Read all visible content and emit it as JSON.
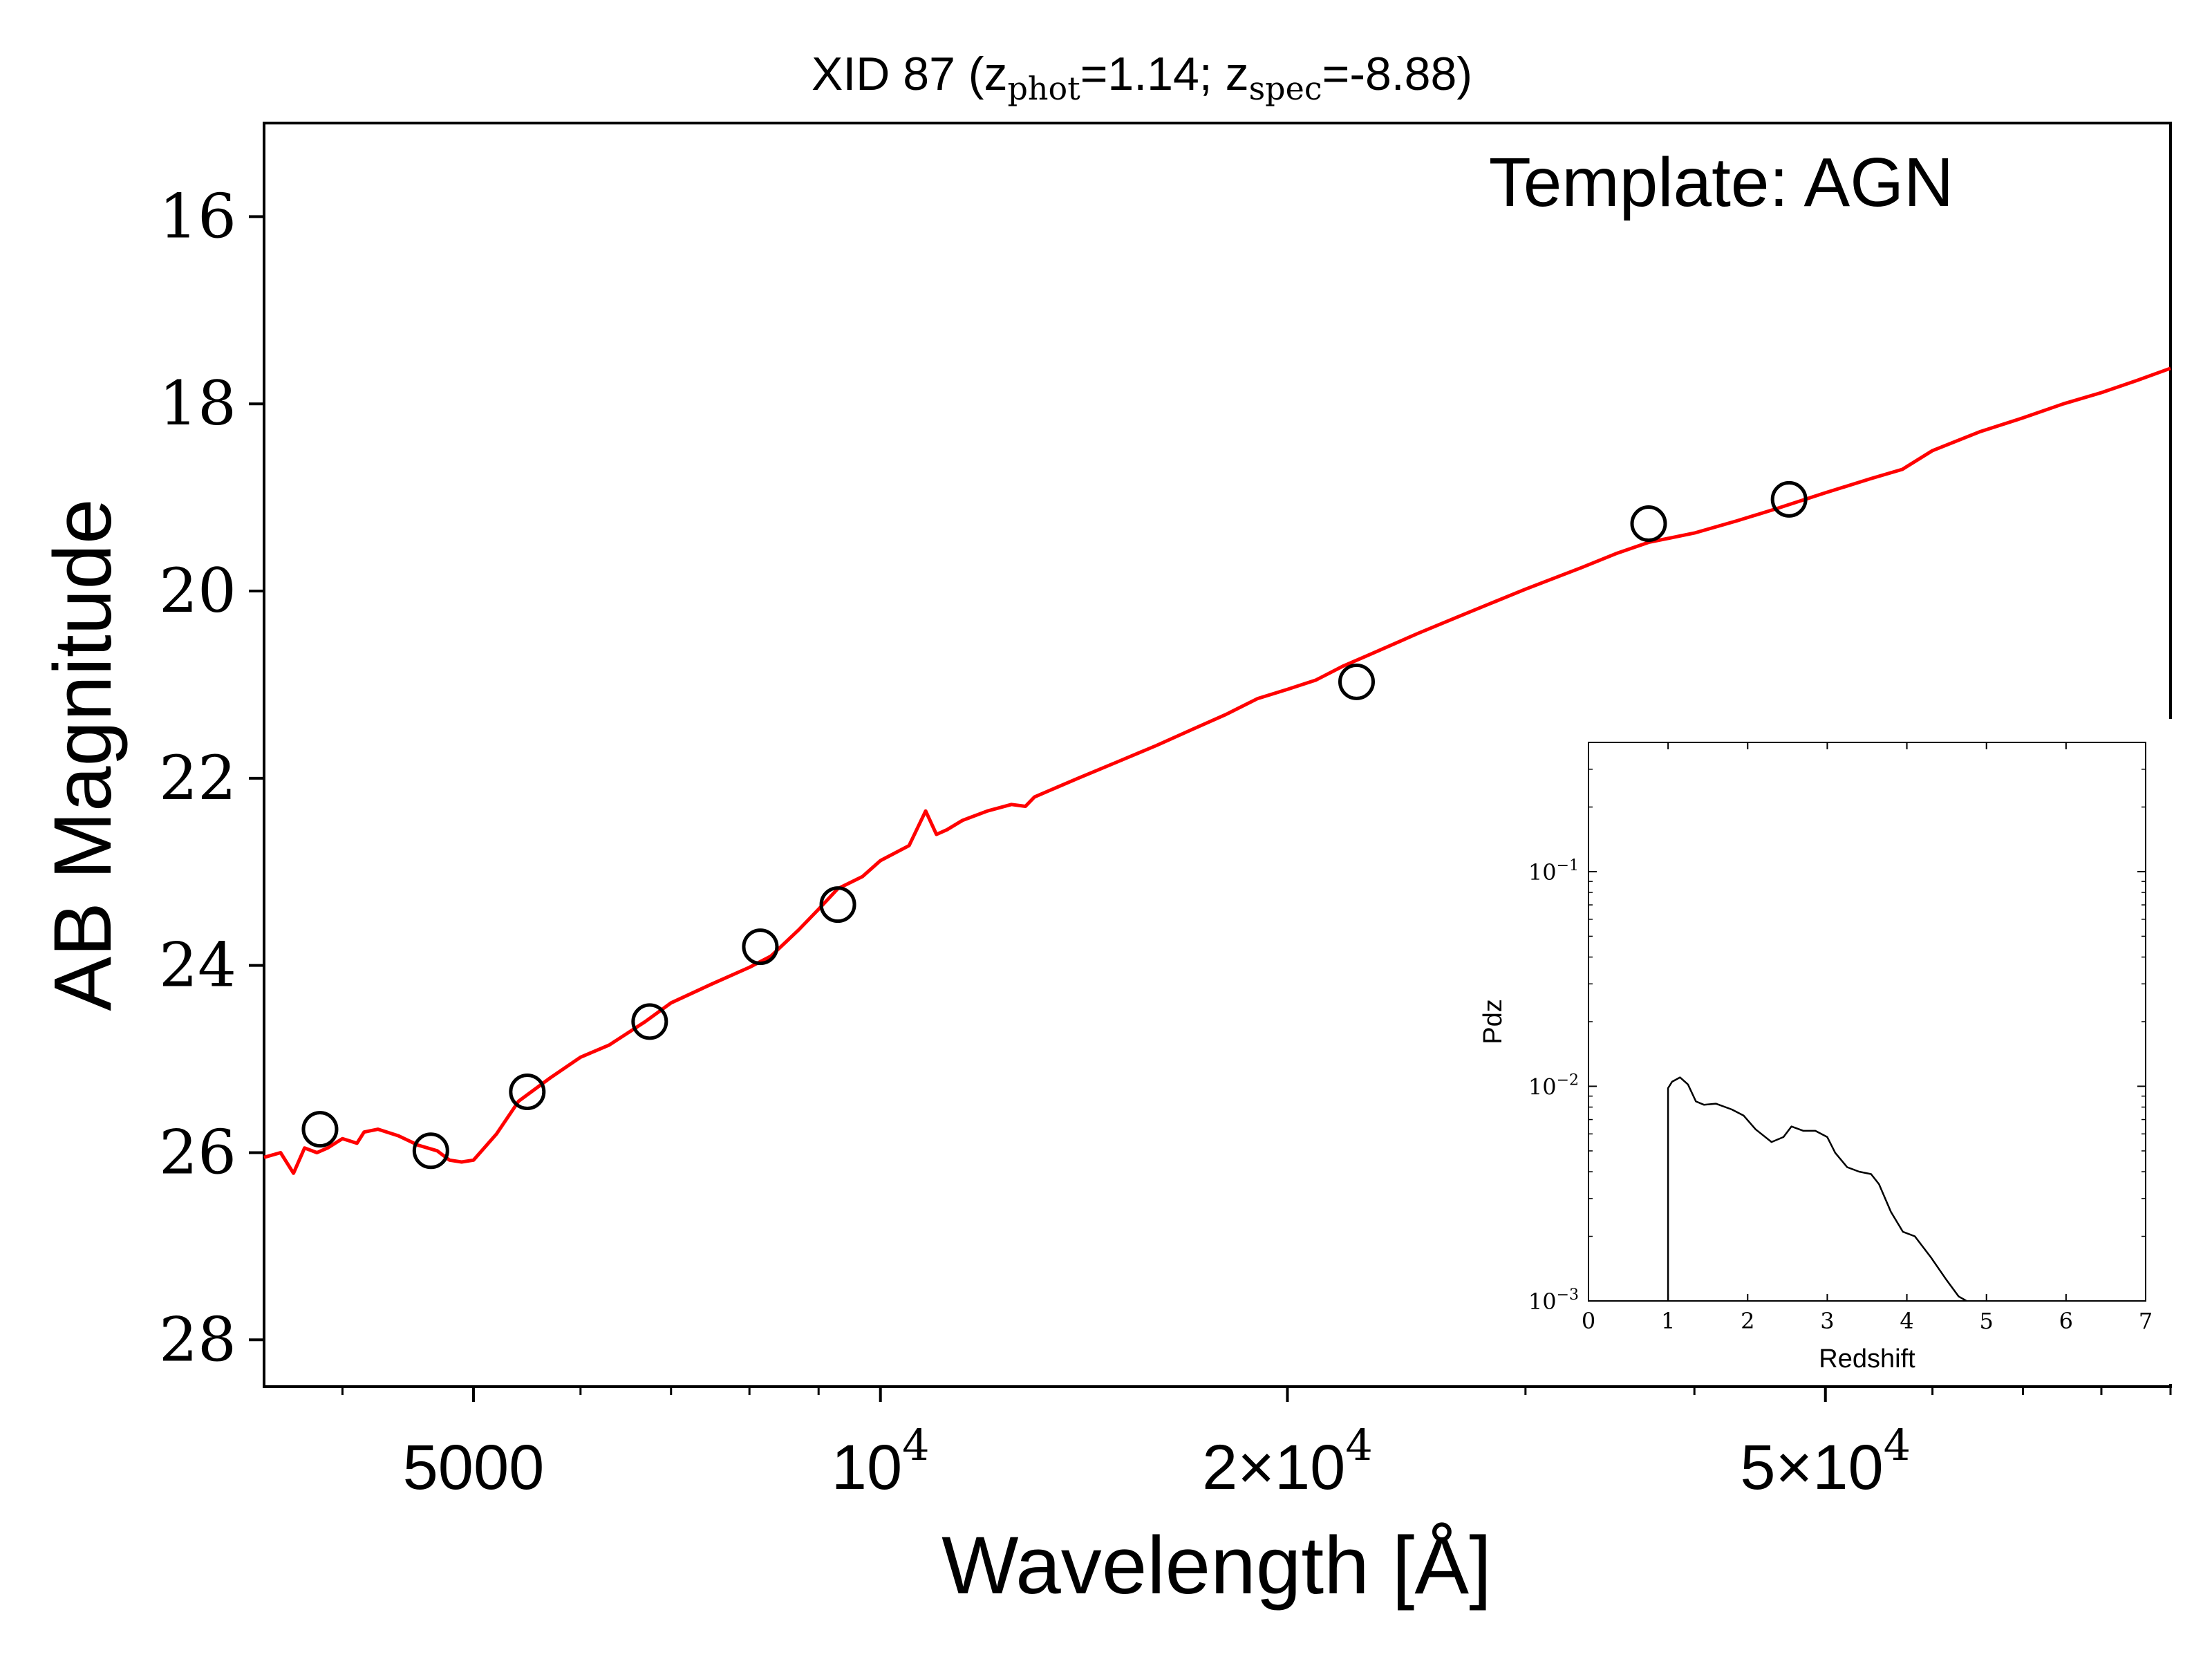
{
  "chart_data": [
    {
      "type": "scatter",
      "title": {
        "prefix": "XID 87 (z",
        "sub1": "phot",
        "mid": "=1.14; z",
        "sub2": "spec",
        "suffix": "=-8.88)"
      },
      "annotation": "Template: AGN",
      "xlabel": "Wavelength [Å]",
      "ylabel": "AB Magnitude",
      "xscale": "log",
      "xlim": [
        3500,
        90000
      ],
      "ylim": [
        28.5,
        15.0
      ],
      "y_inverted": true,
      "x_ticks": [
        {
          "value": 5000,
          "label": "5000",
          "sup": ""
        },
        {
          "value": 10000,
          "label": "10",
          "sup": "4"
        },
        {
          "value": 20000,
          "label": "2×10",
          "sup": "4"
        },
        {
          "value": 50000,
          "label": "5×10",
          "sup": "4"
        }
      ],
      "y_ticks": [
        16,
        18,
        20,
        22,
        24,
        26,
        28
      ],
      "observed_points": {
        "marker": "open-circle",
        "color": "#000000",
        "x": [
          3850,
          4650,
          5480,
          6750,
          8150,
          9300,
          22500,
          37000,
          47000
        ],
        "y": [
          25.75,
          25.98,
          25.35,
          24.6,
          23.8,
          23.35,
          20.97,
          19.28,
          19.02
        ]
      },
      "template_curve": {
        "color": "#ff0000",
        "x": [
          3500,
          3600,
          3680,
          3750,
          3830,
          3900,
          4000,
          4100,
          4150,
          4250,
          4400,
          4550,
          4700,
          4800,
          4900,
          5000,
          5200,
          5400,
          5700,
          6000,
          6300,
          6700,
          7000,
          7500,
          8000,
          8300,
          8700,
          9000,
          9300,
          9700,
          10000,
          10500,
          10800,
          11000,
          11200,
          11500,
          12000,
          12500,
          12800,
          13000,
          14000,
          15000,
          16000,
          17000,
          18000,
          19000,
          20000,
          21000,
          22000,
          23000,
          25000,
          27000,
          30000,
          33000,
          35000,
          37000,
          40000,
          43000,
          46000,
          50000,
          54000,
          57000,
          60000,
          65000,
          70000,
          75000,
          80000,
          85000,
          90000
        ],
        "y": [
          26.05,
          26.0,
          26.22,
          25.95,
          26.0,
          25.95,
          25.85,
          25.9,
          25.78,
          25.75,
          25.82,
          25.92,
          25.98,
          26.08,
          26.1,
          26.08,
          25.8,
          25.45,
          25.2,
          24.98,
          24.85,
          24.6,
          24.4,
          24.2,
          24.02,
          23.9,
          23.62,
          23.4,
          23.18,
          23.05,
          22.88,
          22.72,
          22.35,
          22.6,
          22.55,
          22.45,
          22.35,
          22.28,
          22.3,
          22.2,
          22.0,
          21.82,
          21.65,
          21.48,
          21.32,
          21.15,
          21.05,
          20.95,
          20.8,
          20.68,
          20.45,
          20.25,
          19.98,
          19.75,
          19.6,
          19.48,
          19.38,
          19.25,
          19.12,
          18.95,
          18.8,
          18.7,
          18.5,
          18.3,
          18.15,
          18.0,
          17.88,
          17.75,
          17.62
        ]
      }
    },
    {
      "type": "line",
      "role": "inset",
      "xlabel": "Redshift",
      "ylabel": "Pdz",
      "xscale": "linear",
      "yscale": "log",
      "xlim": [
        0,
        7
      ],
      "ylim": [
        0.001,
        0.4
      ],
      "x_ticks": [
        0,
        1,
        2,
        3,
        4,
        5,
        6,
        7
      ],
      "y_ticks": [
        {
          "value": 0.1,
          "base": "10",
          "exp": "−1"
        },
        {
          "value": 0.01,
          "base": "10",
          "exp": "−2"
        },
        {
          "value": 0.001,
          "base": "10",
          "exp": "−3"
        }
      ],
      "color": "#000000",
      "x": [
        1.0,
        1.0,
        1.05,
        1.15,
        1.25,
        1.35,
        1.45,
        1.6,
        1.8,
        1.95,
        2.1,
        2.3,
        2.45,
        2.55,
        2.7,
        2.85,
        3.0,
        3.1,
        3.25,
        3.4,
        3.55,
        3.65,
        3.8,
        3.95,
        4.1,
        4.3,
        4.5,
        4.65,
        4.75
      ],
      "y": [
        0.001,
        0.0098,
        0.0105,
        0.011,
        0.0102,
        0.0085,
        0.0082,
        0.0083,
        0.0078,
        0.0073,
        0.0063,
        0.0055,
        0.0058,
        0.0065,
        0.0062,
        0.0062,
        0.0058,
        0.0049,
        0.0042,
        0.004,
        0.0039,
        0.0035,
        0.0026,
        0.0021,
        0.002,
        0.0016,
        0.00125,
        0.00105,
        0.001
      ]
    }
  ]
}
